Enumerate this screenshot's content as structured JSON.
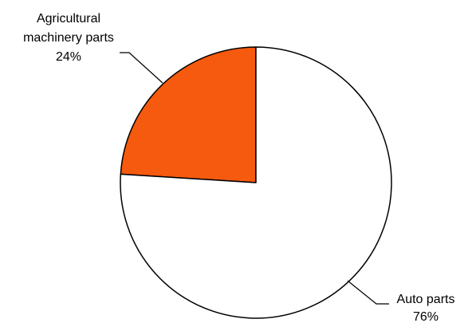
{
  "chart_data": {
    "type": "pie",
    "title": "",
    "slices": [
      {
        "label": "Agricultural machinery parts",
        "label_lines": [
          "Agricultural",
          "machinery parts"
        ],
        "value": 24,
        "percent_text": "24%",
        "color": "#F55A0E"
      },
      {
        "label": "Auto parts",
        "label_lines": [
          "Auto parts"
        ],
        "value": 76,
        "percent_text": "76%",
        "color": "#FFFFFF"
      }
    ],
    "legend": "none",
    "data_labels": "outside with leader lines",
    "stroke_color": "#000000"
  }
}
